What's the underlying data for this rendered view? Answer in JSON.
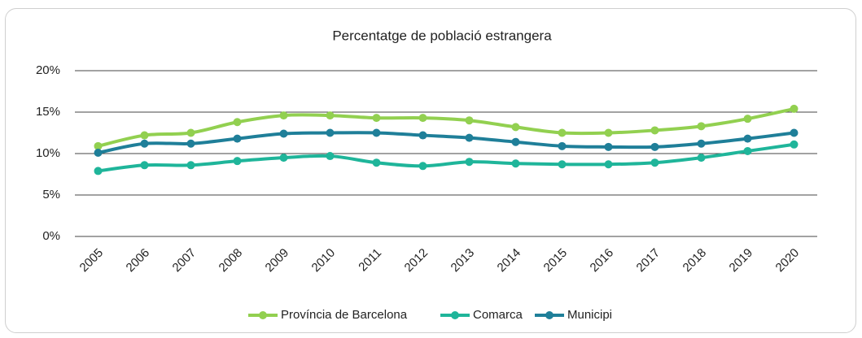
{
  "chart_data": {
    "type": "line",
    "title": "Percentatge de població estrangera",
    "categories": [
      "2005",
      "2006",
      "2007",
      "2008",
      "2009",
      "2010",
      "2011",
      "2012",
      "2013",
      "2014",
      "2015",
      "2016",
      "2017",
      "2018",
      "2019",
      "2020"
    ],
    "series": [
      {
        "name": "Província de Barcelona",
        "color": "#92d050",
        "values": [
          10.9,
          12.2,
          12.5,
          13.8,
          14.6,
          14.6,
          14.3,
          14.3,
          14.0,
          13.2,
          12.5,
          12.5,
          12.8,
          13.3,
          14.2,
          15.4
        ]
      },
      {
        "name": "Comarca",
        "color": "#1fb59a",
        "values": [
          7.9,
          8.6,
          8.6,
          9.1,
          9.5,
          9.7,
          8.9,
          8.5,
          9.0,
          8.8,
          8.7,
          8.7,
          8.9,
          9.5,
          10.3,
          11.1
        ]
      },
      {
        "name": "Municipi",
        "color": "#1f7f99",
        "values": [
          10.1,
          11.2,
          11.2,
          11.8,
          12.4,
          12.5,
          12.5,
          12.2,
          11.9,
          11.4,
          10.9,
          10.8,
          10.8,
          11.2,
          11.8,
          12.5
        ]
      }
    ],
    "ylim": [
      0,
      20
    ],
    "yticks": [
      {
        "value": 0,
        "label": "0%"
      },
      {
        "value": 5,
        "label": "5%"
      },
      {
        "value": 10,
        "label": "10%"
      },
      {
        "value": 15,
        "label": "15%"
      },
      {
        "value": 20,
        "label": "20%"
      }
    ],
    "grid": true,
    "legend": "bottom"
  }
}
